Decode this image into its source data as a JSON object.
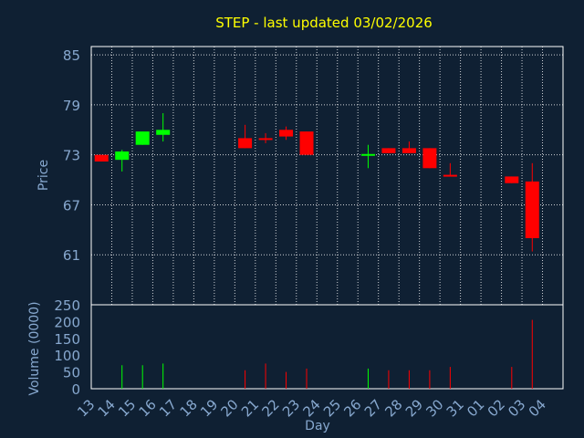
{
  "colors": {
    "background": "#0f2033",
    "frame": "#ffffff",
    "grid": "#ffffff",
    "title": "#ffff00",
    "axis_text": "#87a8cf",
    "up": "#00ff00",
    "down": "#ff0000"
  },
  "chart_data": {
    "type": "candlestick",
    "title": "STEP - last updated 03/02/2026",
    "xlabel": "Day",
    "price_panel": {
      "ylabel": "Price",
      "ylim": [
        55,
        86
      ],
      "yticks": [
        "85",
        "79",
        "73",
        "67",
        "61"
      ],
      "ytick_values": [
        85,
        79,
        73,
        67,
        61
      ],
      "grid": true
    },
    "volume_panel": {
      "ylabel": "Volume (0000)",
      "ylim": [
        0,
        250
      ],
      "yticks": [
        "250",
        "200",
        "150",
        "100",
        "50",
        "0"
      ],
      "ytick_values": [
        250,
        200,
        150,
        100,
        50,
        0
      ]
    },
    "x_labels": [
      "13",
      "14",
      "15",
      "16",
      "17",
      "18",
      "19",
      "20",
      "21",
      "22",
      "23",
      "24",
      "25",
      "26",
      "27",
      "28",
      "29",
      "30",
      "31",
      "01",
      "02",
      "03",
      "04"
    ],
    "candles": [
      {
        "day": "13",
        "open": 73.0,
        "close": 72.2,
        "high": 73.0,
        "low": 72.2,
        "volume": 0
      },
      {
        "day": "14",
        "open": 72.4,
        "close": 73.4,
        "high": 73.6,
        "low": 71.0,
        "volume": 70
      },
      {
        "day": "15",
        "open": 74.2,
        "close": 75.8,
        "high": 75.8,
        "low": 74.2,
        "volume": 70
      },
      {
        "day": "16",
        "open": 75.4,
        "close": 76.0,
        "high": 78.0,
        "low": 74.6,
        "volume": 75
      },
      {
        "day": "20",
        "open": 75.0,
        "close": 73.8,
        "high": 76.6,
        "low": 73.8,
        "volume": 55
      },
      {
        "day": "21",
        "open": 75.0,
        "close": 74.9,
        "high": 75.6,
        "low": 74.4,
        "volume": 75
      },
      {
        "day": "22",
        "open": 76.0,
        "close": 75.2,
        "high": 76.4,
        "low": 74.8,
        "volume": 50
      },
      {
        "day": "23",
        "open": 75.8,
        "close": 73.0,
        "high": 75.8,
        "low": 73.0,
        "volume": 60
      },
      {
        "day": "26",
        "open": 73.0,
        "close": 73.1,
        "high": 74.2,
        "low": 71.4,
        "volume": 60
      },
      {
        "day": "27",
        "open": 73.8,
        "close": 73.2,
        "high": 73.8,
        "low": 73.2,
        "volume": 55
      },
      {
        "day": "28",
        "open": 73.8,
        "close": 73.2,
        "high": 74.6,
        "low": 73.2,
        "volume": 55
      },
      {
        "day": "29",
        "open": 73.8,
        "close": 71.4,
        "high": 73.8,
        "low": 71.4,
        "volume": 55
      },
      {
        "day": "30",
        "open": 70.6,
        "close": 70.4,
        "high": 72.0,
        "low": 70.4,
        "volume": 65
      },
      {
        "day": "02",
        "open": 70.4,
        "close": 69.6,
        "high": 70.4,
        "low": 69.6,
        "volume": 65
      },
      {
        "day": "03",
        "open": 69.8,
        "close": 63.0,
        "high": 72.0,
        "low": 61.4,
        "volume": 205
      }
    ]
  }
}
